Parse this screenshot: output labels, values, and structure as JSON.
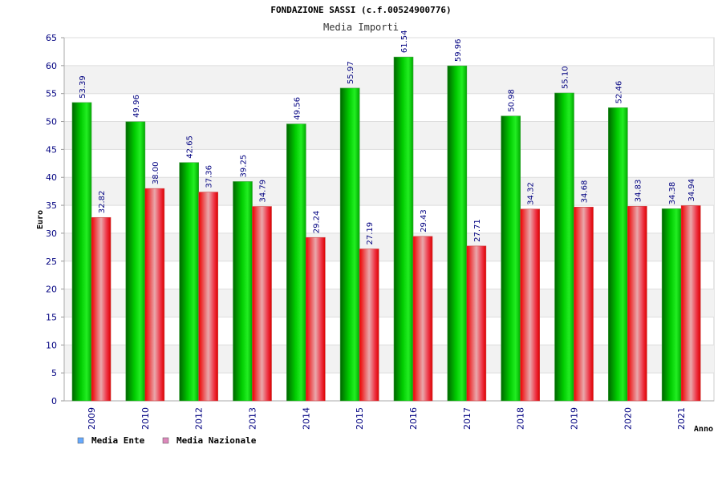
{
  "chart_data": {
    "type": "bar",
    "title": "FONDAZIONE SASSI (c.f.00524900776)",
    "subtitle": "Media Importi",
    "xlabel": "Anno",
    "ylabel": "Euro",
    "ylim": [
      0,
      65
    ],
    "yticks": [
      0,
      5,
      10,
      15,
      20,
      25,
      30,
      35,
      40,
      45,
      50,
      55,
      60,
      65
    ],
    "categories": [
      "2009",
      "2010",
      "2012",
      "2013",
      "2014",
      "2015",
      "2016",
      "2017",
      "2018",
      "2019",
      "2020",
      "2021"
    ],
    "series": [
      {
        "name": "Media Ente",
        "values": [
          53.39,
          49.96,
          42.65,
          39.25,
          49.56,
          55.97,
          61.54,
          59.96,
          50.98,
          55.1,
          52.46,
          34.38
        ],
        "labels": [
          "53.39",
          "49.96",
          "42.65",
          "39.25",
          "49.56",
          "55.97",
          "61.54",
          "59.96",
          "50.98",
          "55.10",
          "52.46",
          "34.38"
        ],
        "color": "#00b000",
        "legend_color": "#66aaff"
      },
      {
        "name": "Media Nazionale",
        "values": [
          32.82,
          38.0,
          37.36,
          34.79,
          29.24,
          27.19,
          29.43,
          27.71,
          34.32,
          34.68,
          34.83,
          34.94
        ],
        "labels": [
          "32.82",
          "38.00",
          "37.36",
          "34.79",
          "29.24",
          "27.19",
          "29.43",
          "27.71",
          "34.32",
          "34.68",
          "34.83",
          "34.94"
        ],
        "color": "#ee0000",
        "legend_color": "#dd88bb"
      }
    ],
    "grid": true,
    "legend_position": "bottom-left"
  }
}
